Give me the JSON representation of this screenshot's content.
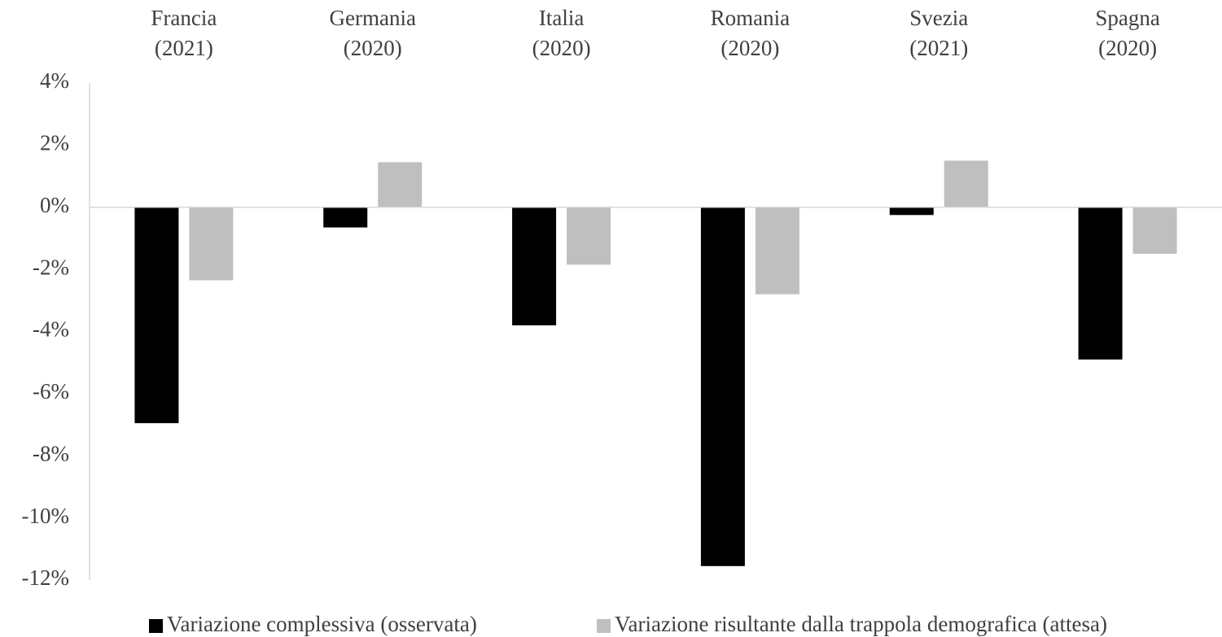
{
  "chart_data": {
    "type": "bar",
    "categories": [
      "Francia (2021)",
      "Germania (2020)",
      "Italia (2020)",
      "Romania (2020)",
      "Svezia (2021)",
      "Spagna (2020)"
    ],
    "series": [
      {
        "name": "Variazione complessiva (osservata)",
        "color": "#000000",
        "values": [
          -6.95,
          -0.65,
          -3.8,
          -11.55,
          -0.25,
          -4.9
        ]
      },
      {
        "name": "Variazione risultante dalla trappola demografica (attesa)",
        "color": "#bfbfbf",
        "values": [
          -2.35,
          1.45,
          -1.85,
          -2.8,
          1.5,
          -1.5
        ]
      }
    ],
    "ylim": [
      -12,
      4
    ],
    "yticks": [
      {
        "value": 4,
        "label": "4%"
      },
      {
        "value": 2,
        "label": "2%"
      },
      {
        "value": 0,
        "label": "0%"
      },
      {
        "value": -2,
        "label": "-2%"
      },
      {
        "value": -4,
        "label": "-4%"
      },
      {
        "value": -6,
        "label": "-6%"
      },
      {
        "value": -8,
        "label": "-8%"
      },
      {
        "value": -10,
        "label": "-10%"
      },
      {
        "value": -12,
        "label": "-12%"
      }
    ],
    "grid": false,
    "legend": "bottom"
  }
}
